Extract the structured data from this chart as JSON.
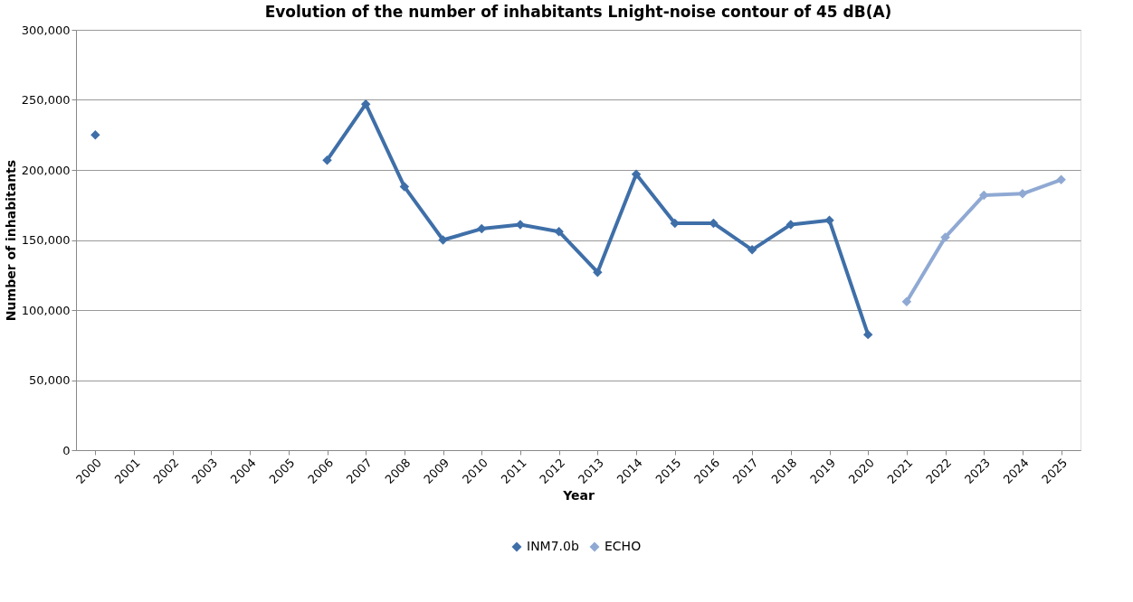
{
  "chart_data": {
    "type": "line",
    "title": "Evolution of the number of inhabitants Lnight-noise contour of 45 dB(A)",
    "xlabel": "Year",
    "ylabel": "Number of inhabitants",
    "categories": [
      "2000",
      "2001",
      "2002",
      "2003",
      "2004",
      "2005",
      "2006",
      "2007",
      "2008",
      "2009",
      "2010",
      "2011",
      "2012",
      "2013",
      "2014",
      "2015",
      "2016",
      "2017",
      "2018",
      "2019",
      "2020",
      "2021",
      "2022",
      "2023",
      "2024",
      "2025"
    ],
    "series": [
      {
        "name": "INM7.0b",
        "color": "#3f6fa8",
        "values": [
          225000,
          null,
          null,
          null,
          null,
          null,
          207000,
          247000,
          188000,
          150000,
          158000,
          161000,
          156000,
          127000,
          197000,
          162000,
          162000,
          143000,
          161000,
          164000,
          82500,
          null,
          null,
          null,
          null,
          null
        ]
      },
      {
        "name": "ECHO",
        "color": "#8fa9d3",
        "values": [
          null,
          null,
          null,
          null,
          null,
          null,
          null,
          null,
          null,
          null,
          null,
          null,
          null,
          null,
          null,
          null,
          null,
          null,
          null,
          null,
          null,
          106000,
          152000,
          182000,
          183000,
          193000
        ]
      }
    ],
    "ylim": [
      0,
      300000
    ],
    "yticks": [
      {
        "value": 0,
        "label": "0"
      },
      {
        "value": 50000,
        "label": "50,000"
      },
      {
        "value": 100000,
        "label": "100,000"
      },
      {
        "value": 150000,
        "label": "150,000"
      },
      {
        "value": 200000,
        "label": "200,000"
      },
      {
        "value": 250000,
        "label": "250,000"
      },
      {
        "value": 300000,
        "label": "300,000"
      }
    ],
    "grid": "y",
    "legend": "bottom",
    "marker": "diamond",
    "line_style": "solid"
  }
}
